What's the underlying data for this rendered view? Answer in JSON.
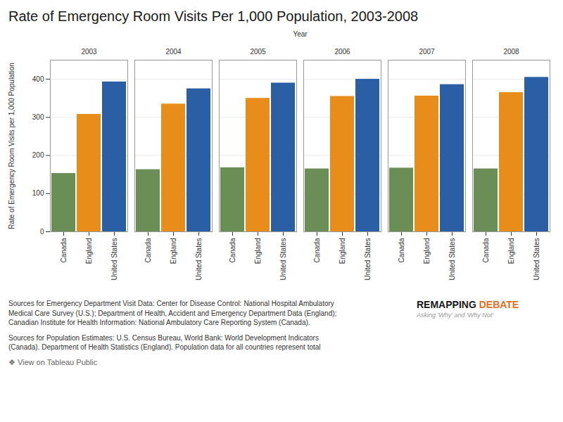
{
  "chart_data": {
    "type": "bar",
    "title": "Rate of Emergency Room Visits Per 1,000 Population, 2003-2008",
    "xlabel": "Year",
    "ylabel": "Rate of Emergency Room Visits per 1,000 Population",
    "categories": [
      "2003",
      "2004",
      "2005",
      "2006",
      "2007",
      "2008"
    ],
    "series": [
      {
        "name": "Canada",
        "color": "#6b8e57",
        "values": [
          153,
          163,
          168,
          165,
          167,
          165
        ]
      },
      {
        "name": "England",
        "color": "#e88c1a",
        "values": [
          308,
          335,
          350,
          355,
          356,
          365
        ]
      },
      {
        "name": "United States",
        "color": "#2b5fa5",
        "values": [
          393,
          375,
          390,
          400,
          386,
          405
        ]
      }
    ],
    "ylim": [
      0,
      450
    ],
    "yticks": [
      0,
      100,
      200,
      300,
      400
    ],
    "grid": true,
    "annotations": [
      "Sources for Emergency Department Visit Data: Center for Disease Control: National Hospital Ambulatory\nMedical Care Survey (U.S.); Department of Health, Accident and Emergency Department Data (England);\nCanadian Institute for Health Information: National Ambulatory Care Reporting System (Canada).",
      "REMAPPING ",
      "DEBATE",
      "Asking 'Why' and 'Why Not'",
      "Sources for Population Estimates: U.S. Census Bureau, World Bank: World Development Indicators\n(Canada). Department of Health Statistics (England). Population data for all countries represent total",
      "❖ View on Tableau Public"
    ]
  }
}
